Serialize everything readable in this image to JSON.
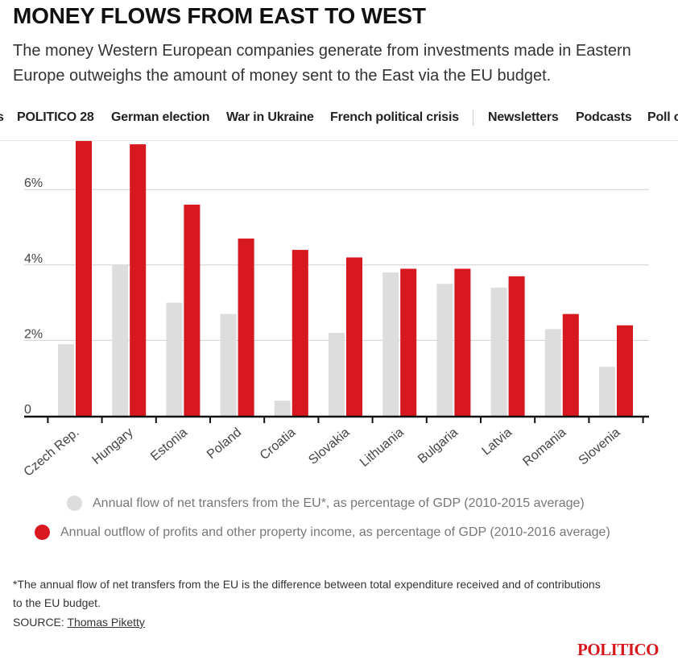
{
  "header": {
    "title": "MONEY FLOWS FROM EAST TO WEST",
    "subtitle": "The money Western European companies generate from investments made in Eastern Europe outweighs the amount of money sent to the East via the EU budget."
  },
  "nav": {
    "items": [
      "s",
      "POLITICO 28",
      "German election",
      "War in Ukraine",
      "French political crisis",
      "Newsletters",
      "Podcasts",
      "Poll o"
    ]
  },
  "chart_data": {
    "type": "bar",
    "categories": [
      "Czech Rep.",
      "Hungary",
      "Estonia",
      "Poland",
      "Croatia",
      "Slovakia",
      "Lithuania",
      "Bulgaria",
      "Latvia",
      "Romania",
      "Slovenia"
    ],
    "series": [
      {
        "name": "Annual flow of net transfers from the EU*, as percentage of GDP (2010-2015 average)",
        "color": "#dddddd",
        "values": [
          1.9,
          4.0,
          3.0,
          2.7,
          0.4,
          2.2,
          3.8,
          3.5,
          3.4,
          2.3,
          1.3
        ]
      },
      {
        "name": "Annual outflow of profits and other property income, as percentage of GDP (2010-2016 average)",
        "color": "#d7191f",
        "values": [
          7.3,
          7.2,
          5.6,
          4.7,
          4.4,
          4.2,
          3.9,
          3.9,
          3.7,
          2.7,
          2.4
        ]
      }
    ],
    "yticks": [
      "0",
      "2%",
      "4%",
      "6%"
    ],
    "ytick_values": [
      0,
      2,
      4,
      6
    ],
    "ylim": [
      0,
      7.3
    ],
    "grid": true,
    "legend": "bottom"
  },
  "footer": {
    "note": "*The annual flow of net transfers from the EU is the difference between total expenditure received and of contributions to the EU budget.",
    "source_label": "SOURCE: ",
    "source_link": "Thomas Piketty"
  },
  "logo": "POLITICO"
}
